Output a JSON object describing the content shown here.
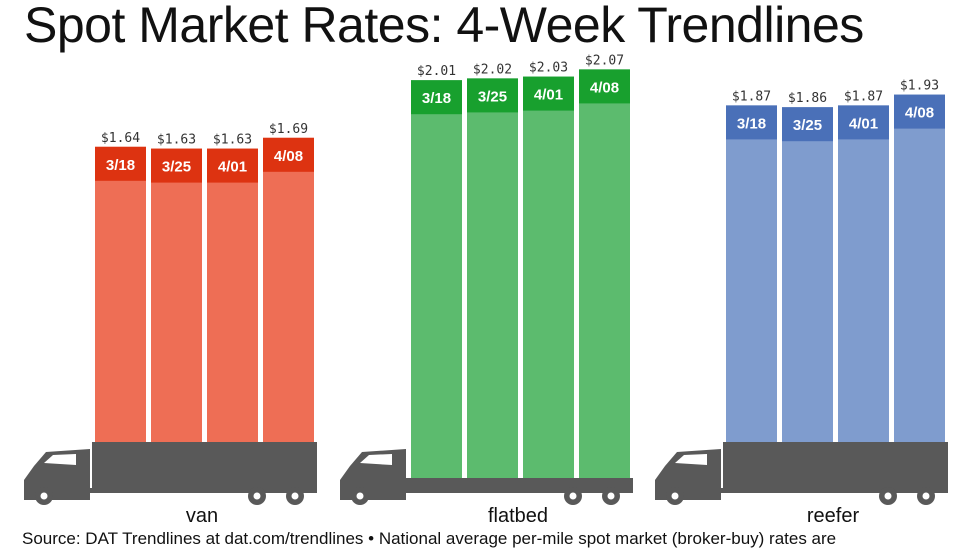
{
  "title": "Spot Market Rates: 4-Week Trendlines",
  "source": "Source: DAT Trendlines at dat.com/trendlines • National average per-mile spot market (broker-buy) rates are",
  "chart_data": {
    "type": "bar",
    "title": "Spot Market Rates: 4-Week Trendlines",
    "categories": [
      "3/18",
      "3/25",
      "4/01",
      "4/08"
    ],
    "groups": [
      {
        "name": "van",
        "values": [
          1.64,
          1.63,
          1.63,
          1.69
        ],
        "labels": [
          "$1.64",
          "$1.63",
          "$1.63",
          "$1.69"
        ],
        "color_body": "#ee6e55",
        "color_header": "#dd3311"
      },
      {
        "name": "flatbed",
        "values": [
          2.01,
          2.02,
          2.03,
          2.07
        ],
        "labels": [
          "$2.01",
          "$2.02",
          "$2.03",
          "$2.07"
        ],
        "color_body": "#5cbb6e",
        "color_header": "#18a02e"
      },
      {
        "name": "reefer",
        "values": [
          1.87,
          1.86,
          1.87,
          1.93
        ],
        "labels": [
          "$1.87",
          "$1.86",
          "$1.87",
          "$1.93"
        ],
        "color_body": "#7f9cce",
        "color_header": "#4a70b8"
      }
    ],
    "truck_color": "#595959"
  }
}
